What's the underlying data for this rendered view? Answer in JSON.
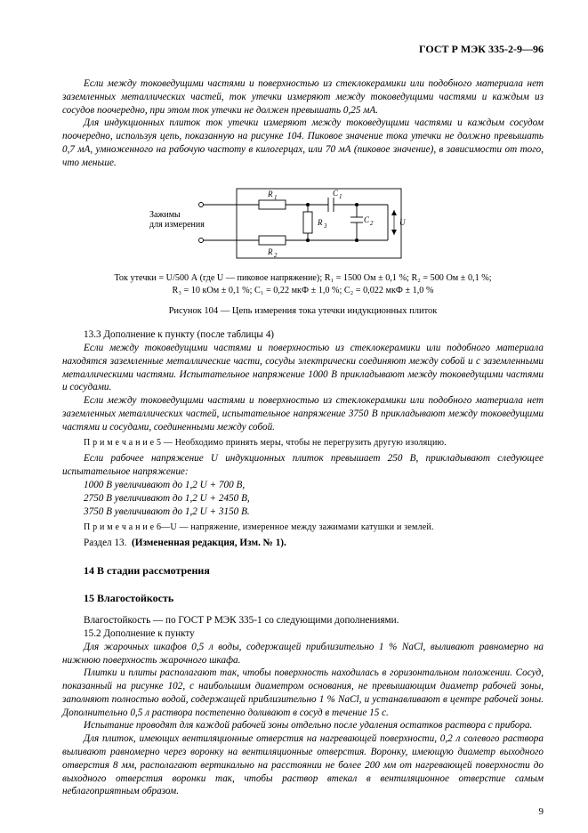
{
  "header": "ГОСТ Р МЭК 335-2-9—96",
  "p1": "Если между токоведущими частями и поверхностью из стеклокерамики или подобного материала нет заземленных металлических частей, ток утечки измеряют между токоведущими частями и каждым из сосудов поочередно, при этом ток утечки не должен превышать 0,25 мА.",
  "p2": "Для индукционных плиток ток утечки измеряют между токоведущими частями и каждым сосудом поочередно, используя цепь, показанную на рисунке 104. Пиковое значение тока утечки не должно превышать 0,7 мА, умноженного на рабочую частоту в килогерцах, или 70 мА (пиковое значение), в зависимости от того, что меньше.",
  "circuit": {
    "terminal_label_line1": "Зажимы",
    "terminal_label_line2": "для измерения",
    "labels": {
      "R1": "R₁",
      "R2": "R₂",
      "R3": "R₃",
      "C1": "C₁",
      "C2": "C₂",
      "U": "U"
    },
    "line_color": "#000000",
    "line_width": 0.9,
    "fontsize": 9
  },
  "caption_line1": "Ток утечки = U/500 А (где U — пиковое напряжение); R₁ = 1500 Ом ± 0,1 %; R₂ = 500 Ом ± 0,1 %;",
  "caption_line2": "R₃ = 10 кОм  ± 0,1 %; C₁ = 0,22 мкФ ± 1,0 %; C₂ = 0,022 мкФ ± 1,0 %",
  "fig_title": "Рисунок 104 — Цепь измерения тока утечки индукционных плиток",
  "p_13_3_lead": "13.3  Дополнение к пункту (после таблицы 4)",
  "p3": "Если между токоведущими частями и поверхностью из стеклокерамики или подобного материала находятся заземленные металлические части, сосуды электрически соединяют между собой и с заземленными металлическими частями. Испытательное напряжение 1000 В прикладывают между токоведущими частями и сосудами.",
  "p4": "Если между токоведущими частями и поверхностью из стеклокерамики или подобного материала нет заземленных металлических частей, испытательное напряжение 3750 В прикладывают между токоведущими частями и сосудами, соединенными между собой.",
  "note5": "П р и м е ч а н и е 5 — Необходимо принять меры, чтобы не перегрузить другую изоляцию.",
  "p5": "Если рабочее напряжение U индукционных плиток превышает 250 В, прикладывают следующее испытательное напряжение:",
  "v1": "1000 В увеличивают до 1,2 U + 700 В,",
  "v2": "2750 В увеличивают до 1,2 U + 2450 В,",
  "v3": "3750 В увеличивают до 1,2 U + 3150 В.",
  "note6": "П р и м е ч а н и е  6—U — напряжение, измеренное между зажимами катушки и землей.",
  "sec13_end": "Раздел 13.  (Измененная редакция, Изм. № 1).",
  "sec14": "14  В стадии рассмотрения",
  "sec15": "15  Влагостойкость",
  "p15_intro": "Влагостойкость — по ГОСТ Р МЭК 335-1 со следующими дополнениями.",
  "p15_2_lead": "15.2  Дополнение к пункту",
  "p6": "Для жарочных шкафов 0,5 л воды, содержащей приблизительно 1 % NaCl, выливают равномерно на нижнюю поверхность жарочного шкафа.",
  "p7": "Плитки и плиты располагают так, чтобы поверхность находилась в горизонтальном положении. Сосуд, показанный на рисунке 102, с наибольшим диаметром основания, не превышающим диаметр рабочей зоны, заполняют полностью водой, содержащей приблизительно 1 % NaCl, и устанавливают в центре рабочей зоны. Дополнительно 0,5 л раствора постепенно доливают в сосуд в течение 15 с.",
  "p8": "Испытание проводят для каждой рабочей зоны отдельно после удаления остатков раствора с прибора.",
  "p9": "Для плиток, имеющих вентиляционные отверстия на нагревающей поверхности, 0,2 л солевого раствора выливают равномерно через воронку на вентиляционные отверстия. Воронку, имеющую диаметр выходного отверстия 8 мм, располагают вертикально на расстоянии не более 200 мм от нагревающей поверхности до выходного отверстия воронки так, чтобы раствор втекал в вентиляционное отверстие самым неблагоприятным образом.",
  "pagenum": "9"
}
